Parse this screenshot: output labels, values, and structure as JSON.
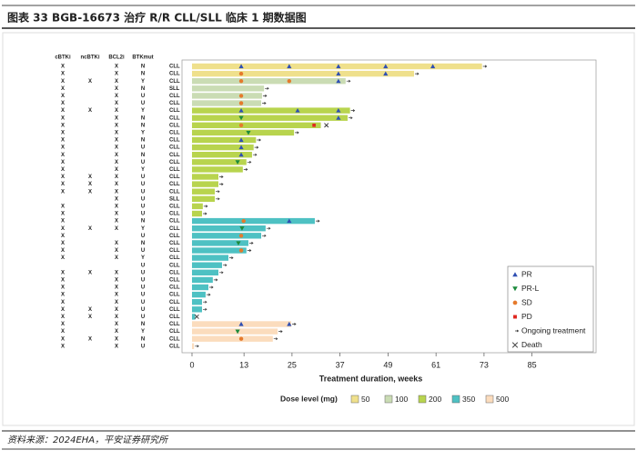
{
  "header": {
    "title": "图表 33  BGB-16673 治疗 R/R CLL/SLL 临床 1 期数据图"
  },
  "footer": {
    "source": "资料来源：2024EHA，平安证券研究所"
  },
  "chart_data": {
    "type": "swimmer",
    "xlabel": "Treatment duration, weeks",
    "xlim": [
      -2.5,
      101
    ],
    "xticks": [
      0,
      13,
      25,
      37,
      49,
      61,
      73,
      85
    ],
    "columns": [
      "cBTKi",
      "ncBTKi",
      "BCL2i",
      "BTKmut"
    ],
    "dose_title": "Dose level (mg)",
    "doses": [
      {
        "value": 50,
        "color": "#efe08c"
      },
      {
        "value": 100,
        "color": "#cadcb4"
      },
      {
        "value": 200,
        "color": "#b8d44e"
      },
      {
        "value": 350,
        "color": "#4ec1c3"
      },
      {
        "value": 500,
        "color": "#fbdcbd"
      }
    ],
    "legend": [
      {
        "name": "PR",
        "symbol": "up",
        "color": "#2f4fb3"
      },
      {
        "name": "PR-L",
        "symbol": "down",
        "color": "#1c8a3c"
      },
      {
        "name": "SD",
        "symbol": "circle",
        "color": "#e57a2c"
      },
      {
        "name": "PD",
        "symbol": "square",
        "color": "#e0261f"
      },
      {
        "name": "Ongoing treatment",
        "symbol": "arrow",
        "color": "#333333"
      },
      {
        "name": "Death",
        "symbol": "x",
        "color": "#333333"
      }
    ],
    "rows": [
      {
        "flags": [
          "X",
          null,
          "X",
          "N"
        ],
        "disease": "CLL",
        "dose": 50,
        "duration": 72.5,
        "ongoing": true,
        "death": null,
        "events": {
          "PR": [
            12.3,
            24.3,
            36.6,
            48.4,
            60.2
          ]
        }
      },
      {
        "flags": [
          "X",
          null,
          "X",
          "N"
        ],
        "disease": "CLL",
        "dose": 50,
        "duration": 55.5,
        "ongoing": true,
        "death": null,
        "events": {
          "SD": [
            12.3
          ],
          "PR": [
            36.6,
            48.4
          ]
        }
      },
      {
        "flags": [
          "X",
          "X",
          "X",
          "Y"
        ],
        "disease": "CLL",
        "dose": 100,
        "duration": 38.4,
        "ongoing": true,
        "death": null,
        "events": {
          "SD": [
            12.3,
            24.3
          ],
          "PR": [
            36.6
          ]
        }
      },
      {
        "flags": [
          "X",
          null,
          "X",
          "N"
        ],
        "disease": "SLL",
        "dose": 100,
        "duration": 18,
        "ongoing": true,
        "death": null,
        "events": {}
      },
      {
        "flags": [
          "X",
          null,
          "X",
          "U"
        ],
        "disease": "CLL",
        "dose": 100,
        "duration": 17.5,
        "ongoing": true,
        "death": null,
        "events": {
          "SD": [
            12.3
          ]
        }
      },
      {
        "flags": [
          "X",
          null,
          "X",
          "U"
        ],
        "disease": "CLL",
        "dose": 100,
        "duration": 17.3,
        "ongoing": true,
        "death": null,
        "events": {
          "SD": [
            12.3
          ]
        }
      },
      {
        "flags": [
          "X",
          "X",
          "X",
          "Y"
        ],
        "disease": "CLL",
        "dose": 200,
        "duration": 39.5,
        "ongoing": true,
        "death": null,
        "events": {
          "PR": [
            12.3,
            26.4,
            36.6
          ]
        }
      },
      {
        "flags": [
          "X",
          null,
          "X",
          "N"
        ],
        "disease": "CLL",
        "dose": 200,
        "duration": 38.9,
        "ongoing": true,
        "death": null,
        "events": {
          "PR-L": [
            12.3
          ],
          "PR": [
            36.6
          ]
        }
      },
      {
        "flags": [
          "X",
          null,
          "X",
          "N"
        ],
        "disease": "CLL",
        "dose": 200,
        "duration": 32.2,
        "ongoing": false,
        "death": 33.6,
        "events": {
          "SD": [
            12.3
          ],
          "PD": [
            30.5
          ]
        }
      },
      {
        "flags": [
          "X",
          null,
          "X",
          "Y"
        ],
        "disease": "CLL",
        "dose": 200,
        "duration": 25.5,
        "ongoing": true,
        "death": null,
        "events": {
          "PR-L": [
            14.1
          ]
        }
      },
      {
        "flags": [
          "X",
          null,
          "X",
          "N"
        ],
        "disease": "CLL",
        "dose": 200,
        "duration": 16,
        "ongoing": true,
        "death": null,
        "events": {
          "PR": [
            12.3
          ]
        }
      },
      {
        "flags": [
          "X",
          null,
          "X",
          "U"
        ],
        "disease": "CLL",
        "dose": 200,
        "duration": 15.4,
        "ongoing": true,
        "death": null,
        "events": {
          "PR": [
            12.3
          ]
        }
      },
      {
        "flags": [
          "X",
          null,
          "X",
          "N"
        ],
        "disease": "CLL",
        "dose": 200,
        "duration": 15,
        "ongoing": true,
        "death": null,
        "events": {
          "PR": [
            12.3
          ]
        }
      },
      {
        "flags": [
          "X",
          null,
          "X",
          "U"
        ],
        "disease": "CLL",
        "dose": 200,
        "duration": 13.6,
        "ongoing": true,
        "death": null,
        "events": {
          "PR-L": [
            11.4
          ]
        }
      },
      {
        "flags": [
          "X",
          null,
          "X",
          "Y"
        ],
        "disease": "CLL",
        "dose": 200,
        "duration": 12.7,
        "ongoing": true,
        "death": null,
        "events": {}
      },
      {
        "flags": [
          "X",
          "X",
          "X",
          "U"
        ],
        "disease": "CLL",
        "dose": 200,
        "duration": 6.6,
        "ongoing": true,
        "death": null,
        "events": {}
      },
      {
        "flags": [
          "X",
          "X",
          "X",
          "U"
        ],
        "disease": "CLL",
        "dose": 200,
        "duration": 6.6,
        "ongoing": true,
        "death": null,
        "events": {}
      },
      {
        "flags": [
          "X",
          "X",
          "X",
          "U"
        ],
        "disease": "CLL",
        "dose": 200,
        "duration": 5.7,
        "ongoing": true,
        "death": null,
        "events": {}
      },
      {
        "flags": [
          null,
          null,
          "X",
          "U"
        ],
        "disease": "SLL",
        "dose": 200,
        "duration": 5.7,
        "ongoing": true,
        "death": null,
        "events": {}
      },
      {
        "flags": [
          "X",
          null,
          "X",
          "U"
        ],
        "disease": "CLL",
        "dose": 200,
        "duration": 2.7,
        "ongoing": true,
        "death": null,
        "events": {}
      },
      {
        "flags": [
          "X",
          null,
          "X",
          "U"
        ],
        "disease": "CLL",
        "dose": 200,
        "duration": 2.5,
        "ongoing": true,
        "death": null,
        "events": {}
      },
      {
        "flags": [
          "X",
          null,
          "X",
          "N"
        ],
        "disease": "CLL",
        "dose": 350,
        "duration": 30.7,
        "ongoing": true,
        "death": null,
        "events": {
          "SD": [
            12.9
          ],
          "PR": [
            24.3
          ]
        }
      },
      {
        "flags": [
          "X",
          "X",
          "X",
          "Y"
        ],
        "disease": "CLL",
        "dose": 350,
        "duration": 18.4,
        "ongoing": true,
        "death": null,
        "events": {
          "PR-L": [
            12.5
          ]
        }
      },
      {
        "flags": [
          "X",
          null,
          null,
          "U"
        ],
        "disease": "CLL",
        "dose": 350,
        "duration": 17.3,
        "ongoing": true,
        "death": null,
        "events": {
          "SD": [
            12.3
          ]
        }
      },
      {
        "flags": [
          "X",
          null,
          "X",
          "N"
        ],
        "disease": "CLL",
        "dose": 350,
        "duration": 14.1,
        "ongoing": true,
        "death": null,
        "events": {
          "PR-L": [
            11.6
          ]
        }
      },
      {
        "flags": [
          "X",
          null,
          "X",
          "U"
        ],
        "disease": "CLL",
        "dose": 350,
        "duration": 13.6,
        "ongoing": true,
        "death": null,
        "events": {
          "SD": [
            12.3
          ]
        }
      },
      {
        "flags": [
          "X",
          null,
          "X",
          "Y"
        ],
        "disease": "CLL",
        "dose": 350,
        "duration": 9.1,
        "ongoing": true,
        "death": null,
        "events": {}
      },
      {
        "flags": [
          null,
          null,
          null,
          "U"
        ],
        "disease": "CLL",
        "dose": 350,
        "duration": 7.5,
        "ongoing": true,
        "death": null,
        "events": {}
      },
      {
        "flags": [
          "X",
          "X",
          "X",
          "U"
        ],
        "disease": "CLL",
        "dose": 350,
        "duration": 6.6,
        "ongoing": true,
        "death": null,
        "events": {}
      },
      {
        "flags": [
          "X",
          null,
          "X",
          "U"
        ],
        "disease": "CLL",
        "dose": 350,
        "duration": 5.2,
        "ongoing": true,
        "death": null,
        "events": {}
      },
      {
        "flags": [
          "X",
          null,
          "X",
          "U"
        ],
        "disease": "CLL",
        "dose": 350,
        "duration": 4.1,
        "ongoing": true,
        "death": null,
        "events": {}
      },
      {
        "flags": [
          "X",
          null,
          "X",
          "U"
        ],
        "disease": "CLL",
        "dose": 350,
        "duration": 3.4,
        "ongoing": true,
        "death": null,
        "events": {}
      },
      {
        "flags": [
          "X",
          null,
          "X",
          "U"
        ],
        "disease": "CLL",
        "dose": 350,
        "duration": 2.5,
        "ongoing": true,
        "death": null,
        "events": {}
      },
      {
        "flags": [
          "X",
          "X",
          "X",
          "U"
        ],
        "disease": "CLL",
        "dose": 350,
        "duration": 2.5,
        "ongoing": true,
        "death": null,
        "events": {}
      },
      {
        "flags": [
          "X",
          "X",
          "X",
          "U"
        ],
        "disease": "CLL",
        "dose": 350,
        "duration": 0.8,
        "ongoing": false,
        "death": 1.2,
        "events": {}
      },
      {
        "flags": [
          "X",
          null,
          "X",
          "N"
        ],
        "disease": "CLL",
        "dose": 500,
        "duration": 24.8,
        "ongoing": true,
        "death": null,
        "events": {
          "PR": [
            12.3,
            24.3
          ]
        }
      },
      {
        "flags": [
          "X",
          null,
          "X",
          "Y"
        ],
        "disease": "CLL",
        "dose": 500,
        "duration": 21.4,
        "ongoing": true,
        "death": null,
        "events": {
          "PR-L": [
            11.4
          ]
        }
      },
      {
        "flags": [
          "X",
          "X",
          "X",
          "N"
        ],
        "disease": "CLL",
        "dose": 500,
        "duration": 20.2,
        "ongoing": true,
        "death": null,
        "events": {
          "SD": [
            12.3
          ]
        }
      },
      {
        "flags": [
          "X",
          null,
          "X",
          "U"
        ],
        "disease": "CLL",
        "dose": 500,
        "duration": 0.5,
        "ongoing": true,
        "death": null,
        "events": {}
      }
    ]
  }
}
